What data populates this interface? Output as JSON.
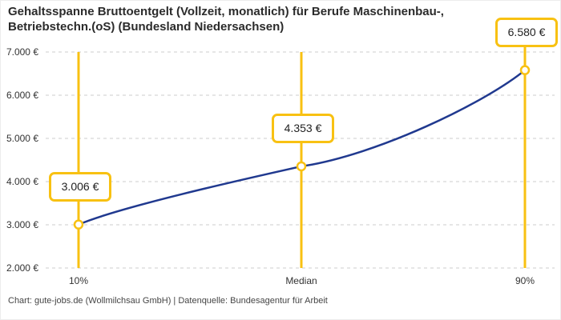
{
  "header": {
    "title_line1": "Gehaltsspanne Bruttoentgelt (Vollzeit, monatlich) für Berufe Maschinenbau-,",
    "title_line2": "Betriebstechn.(oS) (Bundesland Niedersachsen)"
  },
  "footer": {
    "text": "Chart: gute-jobs.de (Wollmilchsau GmbH) | Datenquelle: Bundesagentur für Arbeit"
  },
  "colors": {
    "accent_yellow": "#f8c112",
    "line_blue": "#20398f",
    "grid_gray": "#cccccc",
    "marker_fill": "#ffffff"
  },
  "chart_data": {
    "type": "line",
    "title": "Gehaltsspanne Bruttoentgelt (Vollzeit, monatlich) für Berufe Maschinenbau-, Betriebstechn.(oS) (Bundesland Niedersachsen)",
    "xlabel": "",
    "ylabel": "",
    "ylim": [
      2000,
      7000
    ],
    "grid": "horizontal-dashed",
    "legend": "none",
    "y_ticks": [
      "7.000 €",
      "6.000 €",
      "5.000 €",
      "4.000 €",
      "3.000 €",
      "2.000 €"
    ],
    "y_tick_values": [
      7000,
      6000,
      5000,
      4000,
      3000,
      2000
    ],
    "x_ticks": [
      "10%",
      "Median",
      "90%"
    ],
    "points": [
      {
        "percentile": "10%",
        "value": 3006,
        "label": "3.006 €"
      },
      {
        "percentile": "Median",
        "value": 4353,
        "label": "4.353 €"
      },
      {
        "percentile": "90%",
        "value": 6580,
        "label": "6.580 €"
      }
    ]
  }
}
